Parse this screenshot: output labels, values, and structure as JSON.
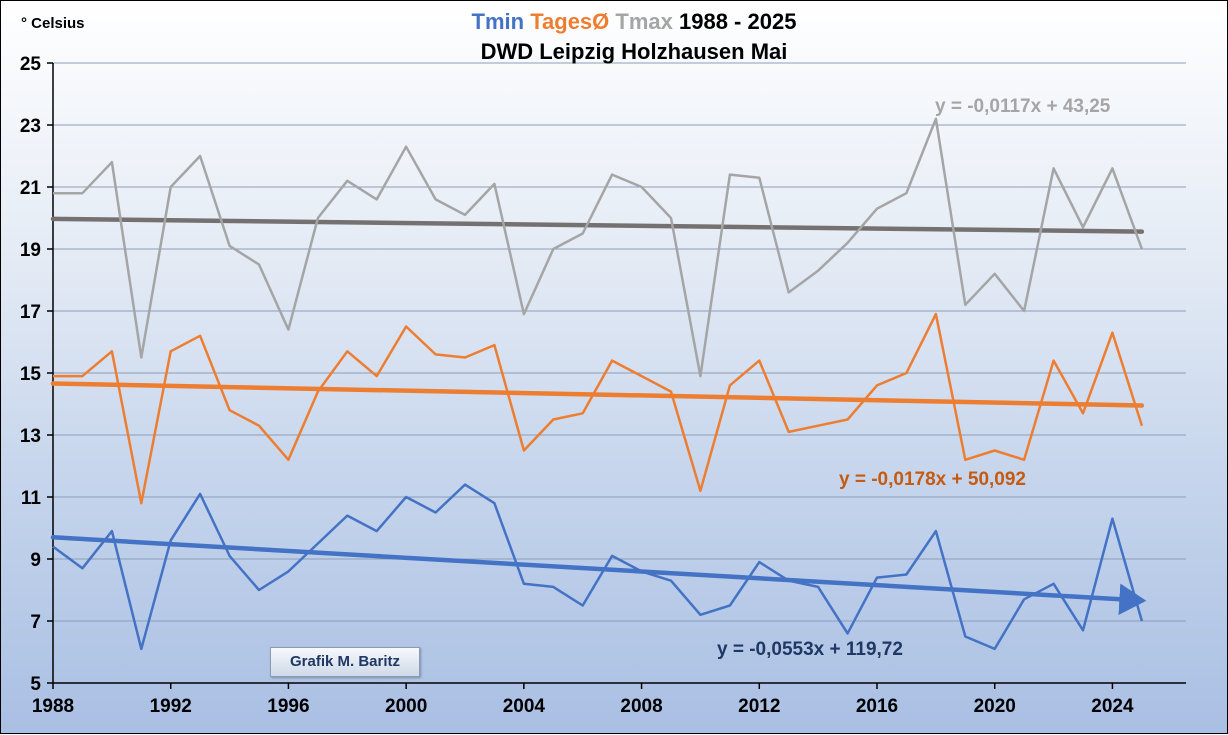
{
  "unit_label": "° Celsius",
  "credit": "Grafik M. Baritz",
  "chart_data": {
    "type": "line",
    "title_parts": [
      {
        "text": "Tmin",
        "color": "#4472c4"
      },
      {
        "text": "TagesØ",
        "color": "#ed7d31"
      },
      {
        "text": "Tmax",
        "color": "#a5a5a5"
      },
      {
        "text": "1988 - 2025",
        "color": "#000000"
      }
    ],
    "subtitle": "DWD Leipzig Holzhausen Mai",
    "x": [
      1988,
      1989,
      1990,
      1991,
      1992,
      1993,
      1994,
      1995,
      1996,
      1997,
      1998,
      1999,
      2000,
      2001,
      2002,
      2003,
      2004,
      2005,
      2006,
      2007,
      2008,
      2009,
      2010,
      2011,
      2012,
      2013,
      2014,
      2015,
      2016,
      2017,
      2018,
      2019,
      2020,
      2021,
      2022,
      2023,
      2024,
      2025
    ],
    "xlim": [
      1988,
      2026.5
    ],
    "ylim": [
      5,
      25
    ],
    "x_ticks": [
      "1988",
      "1992",
      "1996",
      "2000",
      "2004",
      "2008",
      "2012",
      "2016",
      "2020",
      "2024"
    ],
    "y_ticks": [
      "5",
      "7",
      "9",
      "11",
      "13",
      "15",
      "17",
      "19",
      "21",
      "23",
      "25"
    ],
    "grid": "horizontal",
    "series": [
      {
        "name": "Tmax",
        "color": "#a5a5a5",
        "values": [
          20.8,
          20.8,
          21.8,
          15.5,
          21.0,
          22.0,
          19.1,
          18.5,
          16.4,
          20.0,
          21.2,
          20.6,
          22.3,
          20.6,
          20.1,
          21.1,
          16.9,
          19.0,
          19.5,
          21.4,
          21.0,
          20.0,
          14.9,
          21.4,
          21.3,
          17.6,
          18.3,
          19.2,
          20.3,
          20.8,
          23.2,
          17.2,
          18.2,
          17.0,
          21.6,
          19.7,
          21.6,
          19.0
        ]
      },
      {
        "name": "TagesØ",
        "color": "#ed7d31",
        "values": [
          14.9,
          14.9,
          15.7,
          10.8,
          15.7,
          16.2,
          13.8,
          13.3,
          12.2,
          14.4,
          15.7,
          14.9,
          16.5,
          15.6,
          15.5,
          15.9,
          12.5,
          13.5,
          13.7,
          15.4,
          14.9,
          14.4,
          11.2,
          14.6,
          15.4,
          13.1,
          13.3,
          13.5,
          14.6,
          15.0,
          16.9,
          12.2,
          12.5,
          12.2,
          15.4,
          13.7,
          16.3,
          13.3
        ]
      },
      {
        "name": "Tmin",
        "color": "#4472c4",
        "values": [
          9.4,
          8.7,
          9.9,
          6.1,
          9.6,
          11.1,
          9.1,
          8.0,
          8.6,
          9.5,
          10.4,
          9.9,
          11.0,
          10.5,
          11.4,
          10.8,
          8.2,
          8.1,
          7.5,
          9.1,
          8.6,
          8.3,
          7.2,
          7.5,
          8.9,
          8.3,
          8.1,
          6.6,
          8.4,
          8.5,
          9.9,
          6.5,
          6.1,
          7.7,
          8.2,
          6.7,
          10.3,
          7.0
        ]
      }
    ],
    "trendlines": [
      {
        "series": "Tmax",
        "color": "#767171",
        "x": [
          1988,
          2025
        ],
        "y": [
          19.97,
          19.56
        ],
        "label": "y = -0,0117x + 43,25",
        "label_color": "#a5a5a5"
      },
      {
        "series": "TagesØ",
        "color": "#ed7d31",
        "x": [
          1988,
          2025
        ],
        "y": [
          14.66,
          13.95
        ],
        "label": "y = -0,0178x + 50,092",
        "label_color": "#c55a11"
      },
      {
        "series": "Tmin",
        "color": "#4472c4",
        "x": [
          1988,
          2025
        ],
        "y": [
          9.7,
          7.66
        ],
        "label": "y = -0,0553x + 119,72",
        "label_color": "#1f3864",
        "arrow": true
      }
    ]
  }
}
